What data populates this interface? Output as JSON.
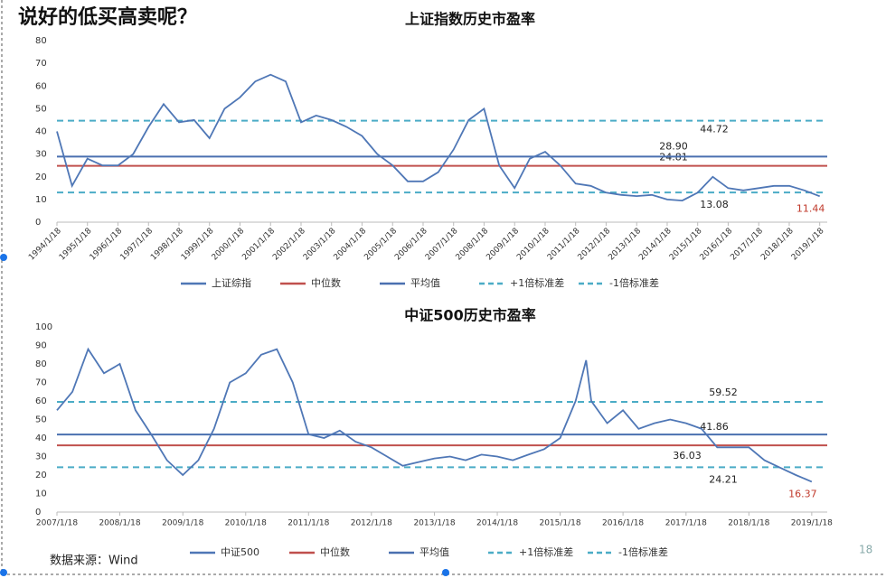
{
  "title": "说好的低买高卖呢？",
  "source": "数据来源：Wind",
  "page_number": "18",
  "chart_data": [
    {
      "type": "line",
      "title": "上证指数历史市盈率",
      "x": [
        "1994/1/18",
        "1994/7/18",
        "1995/1/18",
        "1995/7/18",
        "1996/1/18",
        "1996/7/18",
        "1997/1/18",
        "1997/7/18",
        "1998/1/18",
        "1998/7/18",
        "1999/1/18",
        "1999/7/18",
        "2000/1/18",
        "2000/7/18",
        "2001/1/18",
        "2001/7/18",
        "2002/1/18",
        "2002/7/18",
        "2003/1/18",
        "2003/7/18",
        "2004/1/18",
        "2004/7/18",
        "2005/1/18",
        "2005/7/18",
        "2006/1/18",
        "2006/7/18",
        "2007/1/18",
        "2007/7/18",
        "2008/1/18",
        "2008/7/18",
        "2009/1/18",
        "2009/7/18",
        "2010/1/18",
        "2010/7/18",
        "2011/1/18",
        "2011/7/18",
        "2012/1/18",
        "2012/7/18",
        "2013/1/18",
        "2013/7/18",
        "2014/1/18",
        "2014/7/18",
        "2015/1/18",
        "2015/7/18",
        "2016/1/18",
        "2016/7/18",
        "2017/1/18",
        "2017/7/18",
        "2018/1/18",
        "2018/7/18",
        "2019/1/18"
      ],
      "series": [
        {
          "name": "上证综指",
          "color": "#4f77b6",
          "end_label_color": "#c0392b",
          "values": [
            40,
            16,
            28,
            25,
            25,
            30,
            42,
            52,
            44,
            45,
            37,
            50,
            55,
            62,
            65,
            62,
            44,
            47,
            45,
            42,
            38,
            30,
            25,
            18,
            18,
            22,
            32,
            45,
            50,
            25,
            15,
            28,
            31,
            25,
            17,
            16,
            13,
            12,
            11.5,
            12,
            10,
            9.5,
            13,
            20,
            15,
            14,
            15,
            16,
            16,
            14,
            11.44
          ]
        }
      ],
      "hlines": [
        {
          "name": "中位数",
          "value": 24.81,
          "color": "#c0504d",
          "dash": false
        },
        {
          "name": "平均值",
          "value": 28.9,
          "label": "28.90",
          "color": "#4a70b0",
          "dash": false
        },
        {
          "name": "+1倍标准差",
          "value": 44.72,
          "color": "#4bacc6",
          "dash": true
        },
        {
          "name": "-1倍标准差",
          "value": 13.08,
          "color": "#4bacc6",
          "dash": true
        }
      ],
      "xlim": [
        "1994/1/18",
        "2019/4/18"
      ],
      "xticks": [
        "1994/1/18",
        "1995/1/18",
        "1996/1/18",
        "1997/1/18",
        "1998/1/18",
        "1999/1/18",
        "2000/1/18",
        "2001/1/18",
        "2002/1/18",
        "2003/1/18",
        "2004/1/18",
        "2005/1/18",
        "2006/1/18",
        "2007/1/18",
        "2008/1/18",
        "2009/1/18",
        "2010/1/18",
        "2011/1/18",
        "2012/1/18",
        "2013/1/18",
        "2014/1/18",
        "2015/1/18",
        "2016/1/18",
        "2017/1/18",
        "2018/1/18",
        "2019/1/18"
      ],
      "ylim": [
        0,
        80
      ],
      "yticks": [
        0,
        10,
        20,
        30,
        40,
        50,
        60,
        70,
        80
      ],
      "legend": "bottom"
    },
    {
      "type": "line",
      "title": "中证500历史市盈率",
      "x": [
        "2007/1/18",
        "2007/4/18",
        "2007/7/18",
        "2007/10/18",
        "2008/1/18",
        "2008/4/18",
        "2008/7/18",
        "2008/10/18",
        "2009/1/18",
        "2009/4/18",
        "2009/7/18",
        "2009/10/18",
        "2010/1/18",
        "2010/4/18",
        "2010/7/18",
        "2010/10/18",
        "2011/1/18",
        "2011/4/18",
        "2011/7/18",
        "2011/10/18",
        "2012/1/18",
        "2012/4/18",
        "2012/7/18",
        "2012/10/18",
        "2013/1/18",
        "2013/4/18",
        "2013/7/18",
        "2013/10/18",
        "2014/1/18",
        "2014/4/18",
        "2014/7/18",
        "2014/10/18",
        "2015/1/18",
        "2015/4/18",
        "2015/6/18",
        "2015/7/18",
        "2015/10/18",
        "2016/1/18",
        "2016/4/18",
        "2016/7/18",
        "2016/10/18",
        "2017/1/18",
        "2017/4/18",
        "2017/7/18",
        "2017/10/18",
        "2018/1/18",
        "2018/4/18",
        "2018/7/18",
        "2018/10/18",
        "2019/1/18"
      ],
      "series": [
        {
          "name": "中证500",
          "color": "#4f77b6",
          "end_label_color": "#c0392b",
          "values": [
            55,
            65,
            88,
            75,
            80,
            55,
            42,
            28,
            20,
            28,
            45,
            70,
            75,
            85,
            88,
            70,
            42,
            40,
            44,
            38,
            35,
            30,
            25,
            27,
            29,
            30,
            28,
            31,
            30,
            28,
            31,
            34,
            40,
            60,
            82,
            60,
            48,
            55,
            45,
            48,
            50,
            48,
            45,
            35,
            35,
            35,
            28,
            24,
            20,
            16.37
          ]
        }
      ],
      "hlines": [
        {
          "name": "中位数",
          "value": 36.03,
          "color": "#c0504d",
          "dash": false
        },
        {
          "name": "平均值",
          "value": 41.86,
          "color": "#4a70b0",
          "dash": false
        },
        {
          "name": "+1倍标准差",
          "value": 59.52,
          "color": "#4bacc6",
          "dash": true
        },
        {
          "name": "-1倍标准差",
          "value": 24.21,
          "color": "#4bacc6",
          "dash": true
        }
      ],
      "xlim": [
        "2007/1/18",
        "2019/4/18"
      ],
      "xticks": [
        "2007/1/18",
        "2008/1/18",
        "2009/1/18",
        "2010/1/18",
        "2011/1/18",
        "2012/1/18",
        "2013/1/18",
        "2014/1/18",
        "2015/1/18",
        "2016/1/18",
        "2017/1/18",
        "2018/1/18",
        "2019/1/18"
      ],
      "ylim": [
        0,
        100
      ],
      "yticks": [
        0,
        10,
        20,
        30,
        40,
        50,
        60,
        70,
        80,
        90,
        100
      ],
      "legend": "bottom"
    }
  ]
}
